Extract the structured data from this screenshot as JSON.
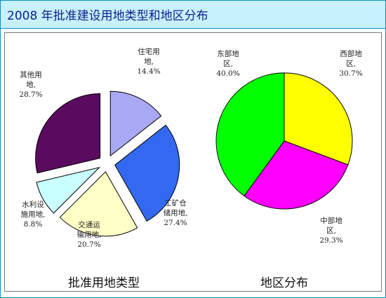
{
  "title": "2008 年批准建设用地类型和地区分布",
  "chart_data": [
    {
      "type": "pie",
      "title": "批准用地类型",
      "exploded": true,
      "slices": [
        {
          "label": [
            "住宅用",
            "地,",
            "14.4%"
          ],
          "value": 14.4,
          "color": "#a9a9f3"
        },
        {
          "label": [
            "工矿仓",
            "储用地,",
            "27.4%"
          ],
          "value": 27.4,
          "color": "#3369f0"
        },
        {
          "label": [
            "交通运",
            "输用地,",
            "20.7%"
          ],
          "value": 20.7,
          "color": "#ffffc6"
        },
        {
          "label": [
            "水利设",
            "施用地,",
            "8.8%"
          ],
          "value": 8.8,
          "color": "#c9ffff"
        },
        {
          "label": [
            "其他用",
            "地,",
            "28.7%"
          ],
          "value": 28.7,
          "color": "#5b0b5f"
        }
      ]
    },
    {
      "type": "pie",
      "title": "地区分布",
      "exploded": false,
      "slices": [
        {
          "label": [
            "西部地",
            "区,",
            "30.7%"
          ],
          "value": 30.7,
          "color": "#ffff00"
        },
        {
          "label": [
            "中部地",
            "区,",
            "29.3%"
          ],
          "value": 29.3,
          "color": "#ff00ff"
        },
        {
          "label": [
            "东部地",
            "区,",
            "40.0%"
          ],
          "value": 40.0,
          "color": "#00ff00"
        }
      ]
    }
  ]
}
